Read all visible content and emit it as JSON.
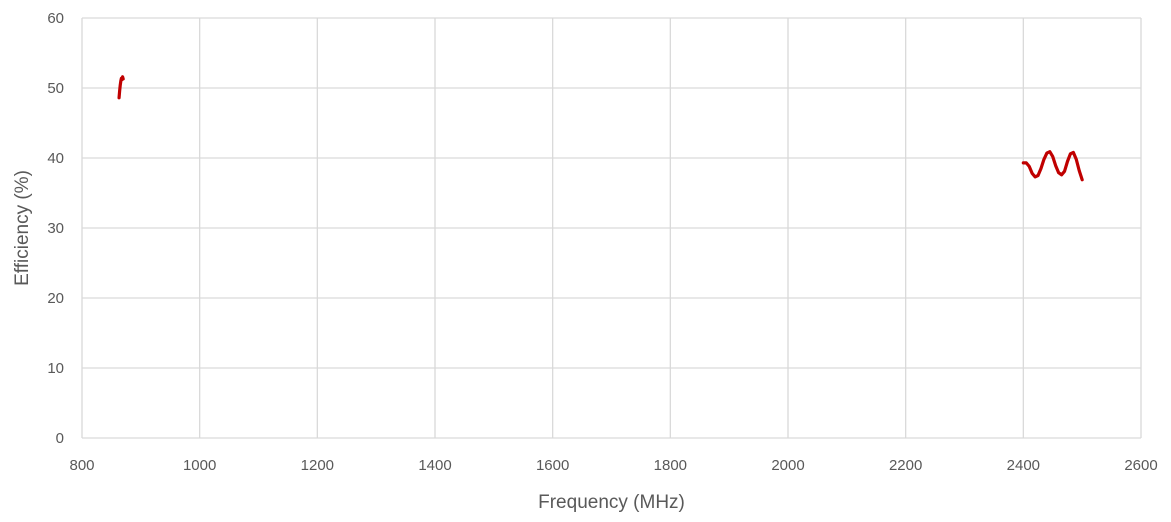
{
  "chart_data": {
    "type": "line",
    "title": "",
    "xlabel": "Frequency (MHz)",
    "ylabel": "Efficiency (%)",
    "xlim": [
      800,
      2600
    ],
    "ylim": [
      0,
      60
    ],
    "xticks": [
      800,
      1000,
      1200,
      1400,
      1600,
      1800,
      2000,
      2200,
      2400,
      2600
    ],
    "yticks": [
      0,
      10,
      20,
      30,
      40,
      50,
      60
    ],
    "grid": true,
    "legend": "none",
    "series_color": "#c00000",
    "series": [
      {
        "segments": [
          [
            {
              "x": 863,
              "y": 48.6
            },
            {
              "x": 864,
              "y": 49.6
            },
            {
              "x": 865,
              "y": 50.4
            },
            {
              "x": 866,
              "y": 51.0
            },
            {
              "x": 867,
              "y": 51.4
            },
            {
              "x": 868,
              "y": 51.2
            },
            {
              "x": 869,
              "y": 51.6
            },
            {
              "x": 870,
              "y": 51.3
            }
          ],
          [
            {
              "x": 2400,
              "y": 39.3
            },
            {
              "x": 2405,
              "y": 39.3
            },
            {
              "x": 2410,
              "y": 38.8
            },
            {
              "x": 2415,
              "y": 37.8
            },
            {
              "x": 2420,
              "y": 37.3
            },
            {
              "x": 2425,
              "y": 37.5
            },
            {
              "x": 2430,
              "y": 38.5
            },
            {
              "x": 2435,
              "y": 39.8
            },
            {
              "x": 2440,
              "y": 40.7
            },
            {
              "x": 2445,
              "y": 40.9
            },
            {
              "x": 2450,
              "y": 40.2
            },
            {
              "x": 2455,
              "y": 38.9
            },
            {
              "x": 2460,
              "y": 37.9
            },
            {
              "x": 2465,
              "y": 37.6
            },
            {
              "x": 2470,
              "y": 38.1
            },
            {
              "x": 2475,
              "y": 39.5
            },
            {
              "x": 2480,
              "y": 40.6
            },
            {
              "x": 2485,
              "y": 40.8
            },
            {
              "x": 2490,
              "y": 39.8
            },
            {
              "x": 2495,
              "y": 38.2
            },
            {
              "x": 2500,
              "y": 36.9
            }
          ]
        ]
      }
    ]
  }
}
